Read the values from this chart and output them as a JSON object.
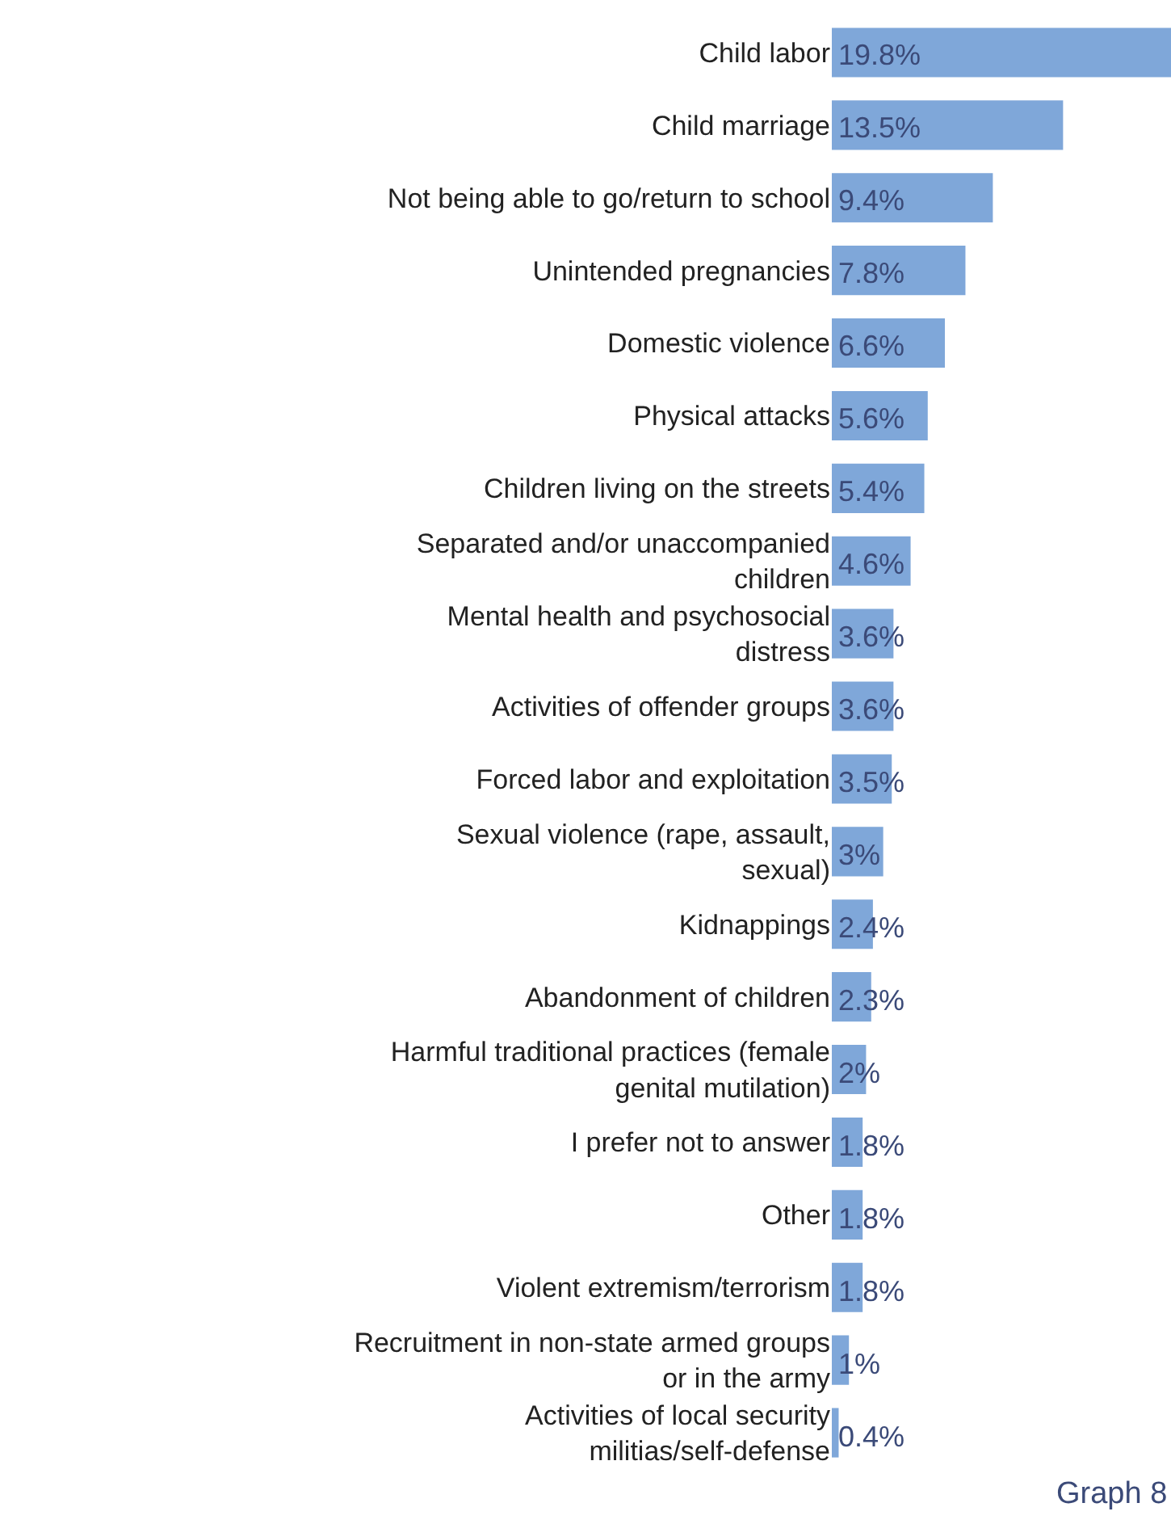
{
  "chart_data": {
    "type": "bar",
    "orientation": "horizontal",
    "data_labels": true,
    "color": "#7fa7d9",
    "categories": [
      "Child labor",
      "Child marriage",
      "Not being able to go/return to school",
      "Unintended pregnancies",
      "Domestic violence",
      "Physical attacks",
      "Children living on the streets",
      "Separated and/or unaccompanied children",
      "Mental health and psychosocial distress",
      "Activities of offender groups",
      "Forced labor and exploitation",
      "Sexual violence (rape, assault, sexual)",
      "Kidnappings",
      "Abandonment of children",
      "Harmful traditional practices (female genital mutilation)",
      "I prefer not to answer",
      "Other",
      "Violent extremism/terrorism",
      "Recruitment in non-state armed groups or in the army",
      "Activities of local security militias/self-defense"
    ],
    "values": [
      19.8,
      13.5,
      9.4,
      7.8,
      6.6,
      5.6,
      5.4,
      4.6,
      3.6,
      3.6,
      3.5,
      3,
      2.4,
      2.3,
      2,
      1.8,
      1.8,
      1.8,
      1,
      0.4
    ],
    "value_labels": [
      "19.8%",
      "13.5%",
      "9.4%",
      "7.8%",
      "6.6%",
      "5.6%",
      "5.4%",
      "4.6%",
      "3.6%",
      "3.6%",
      "3.5%",
      "3%",
      "2.4%",
      "2.3%",
      "2%",
      "1.8%",
      "1.8%",
      "1.8%",
      "1%",
      "0.4%"
    ],
    "annotations": [
      "Graph 8"
    ]
  }
}
